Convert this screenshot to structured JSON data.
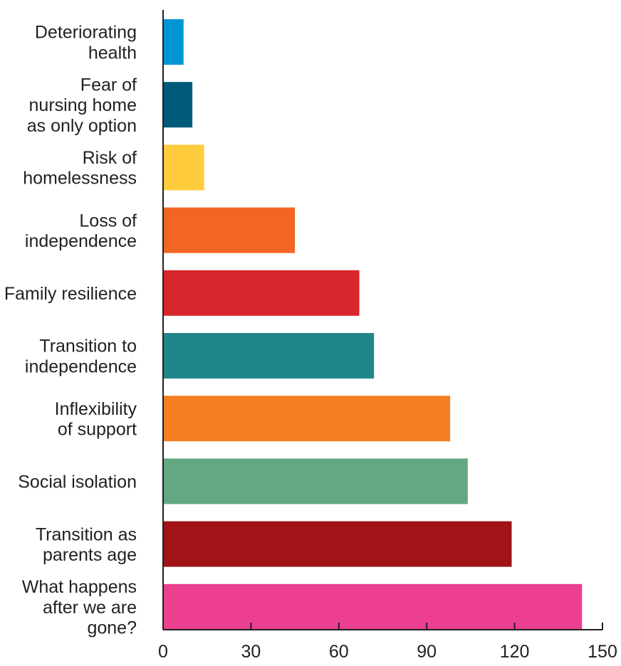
{
  "chart_data": {
    "type": "bar",
    "orientation": "horizontal",
    "categories": [
      [
        "Deteriorating",
        "health"
      ],
      [
        "Fear of",
        "nursing home",
        "as only option"
      ],
      [
        "Risk of",
        "homelessness"
      ],
      [
        "Loss of",
        "independence"
      ],
      [
        "Family resilience"
      ],
      [
        "Transition to",
        "independence"
      ],
      [
        "Inflexibility",
        "of support"
      ],
      [
        "Social isolation"
      ],
      [
        "Transition as",
        "parents age"
      ],
      [
        "What happens",
        "after we are",
        "gone?"
      ]
    ],
    "values": [
      7,
      10,
      14,
      45,
      67,
      72,
      98,
      104,
      119,
      143
    ],
    "colors": [
      "#0096d6",
      "#005b7a",
      "#ffcc3d",
      "#f26522",
      "#d7262c",
      "#21868b",
      "#f47e20",
      "#63a882",
      "#a01418",
      "#ec3f8f"
    ],
    "xlim": [
      0,
      150
    ],
    "xticks": [
      "0",
      "30",
      "60",
      "90",
      "120",
      "150"
    ],
    "xtick_values": [
      0,
      30,
      60,
      90,
      120,
      150
    ],
    "grid": false,
    "legend": "none"
  }
}
